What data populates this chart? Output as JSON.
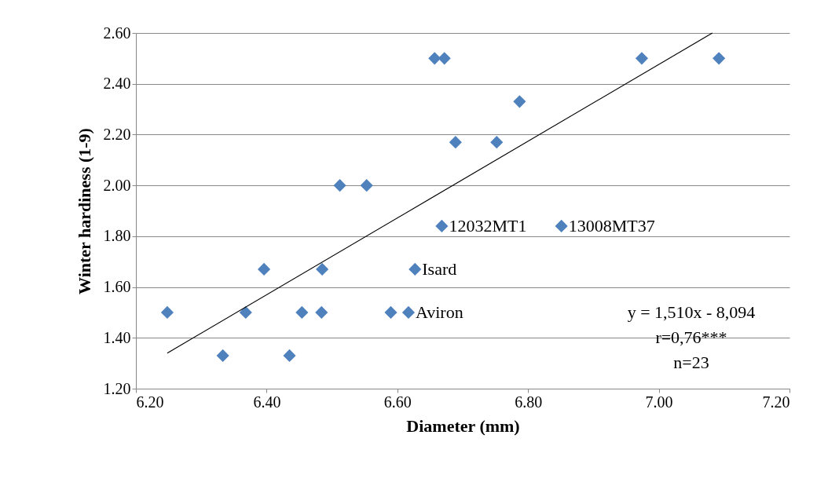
{
  "chart_data": {
    "type": "scatter",
    "xlabel": "Diameter (mm)",
    "ylabel": "Winter hardiness  (1-9)",
    "xlim": [
      6.2,
      7.2
    ],
    "xticks": [
      {
        "value": 6.2,
        "label": "6.20"
      },
      {
        "value": 6.4,
        "label": "6.40"
      },
      {
        "value": 6.6,
        "label": "6.60"
      },
      {
        "value": 6.8,
        "label": "6.80"
      },
      {
        "value": 7.0,
        "label": "7.00"
      },
      {
        "value": 7.2,
        "label": "7.20"
      }
    ],
    "ylim": [
      1.2,
      2.6
    ],
    "yticks": [
      {
        "value": 1.2,
        "label": "1.20"
      },
      {
        "value": 1.4,
        "label": "1.40"
      },
      {
        "value": 1.6,
        "label": "1.60"
      },
      {
        "value": 1.8,
        "label": "1.80"
      },
      {
        "value": 2.0,
        "label": "2.00"
      },
      {
        "value": 2.2,
        "label": "2.20"
      },
      {
        "value": 2.4,
        "label": "2.40"
      },
      {
        "value": 2.6,
        "label": "2.60"
      }
    ],
    "grid": "y",
    "marker": "diamond",
    "series": [
      {
        "color": "#4f81bd",
        "x": [
          6.248,
          6.333,
          6.368,
          6.396,
          6.435,
          6.454,
          6.484,
          6.485,
          6.512,
          6.553,
          6.59,
          6.617,
          6.627,
          6.657,
          6.672,
          6.668,
          6.689,
          6.752,
          6.787,
          6.851,
          6.974,
          7.092
        ],
        "values": [
          1.5,
          1.33,
          1.5,
          1.67,
          1.33,
          1.5,
          1.5,
          1.67,
          2.0,
          2.0,
          1.5,
          1.5,
          1.67,
          2.5,
          2.5,
          1.84,
          2.17,
          2.17,
          2.33,
          1.84,
          2.5,
          2.5
        ]
      },
      {
        "type": "line",
        "color": "#000000",
        "marker": "none",
        "x": [
          6.248,
          7.082
        ],
        "values": [
          1.34,
          2.6
        ]
      }
    ],
    "annotations": [
      {
        "text": "12032MT1",
        "x": 6.668,
        "y": 1.84
      },
      {
        "text": "13008MT37",
        "x": 6.851,
        "y": 1.84
      },
      {
        "text": "Isard",
        "x": 6.627,
        "y": 1.67
      },
      {
        "text": "Aviron",
        "x": 6.617,
        "y": 1.5
      },
      "y = 1,510x - 8,094",
      "r=0,76***",
      "n=23"
    ]
  }
}
